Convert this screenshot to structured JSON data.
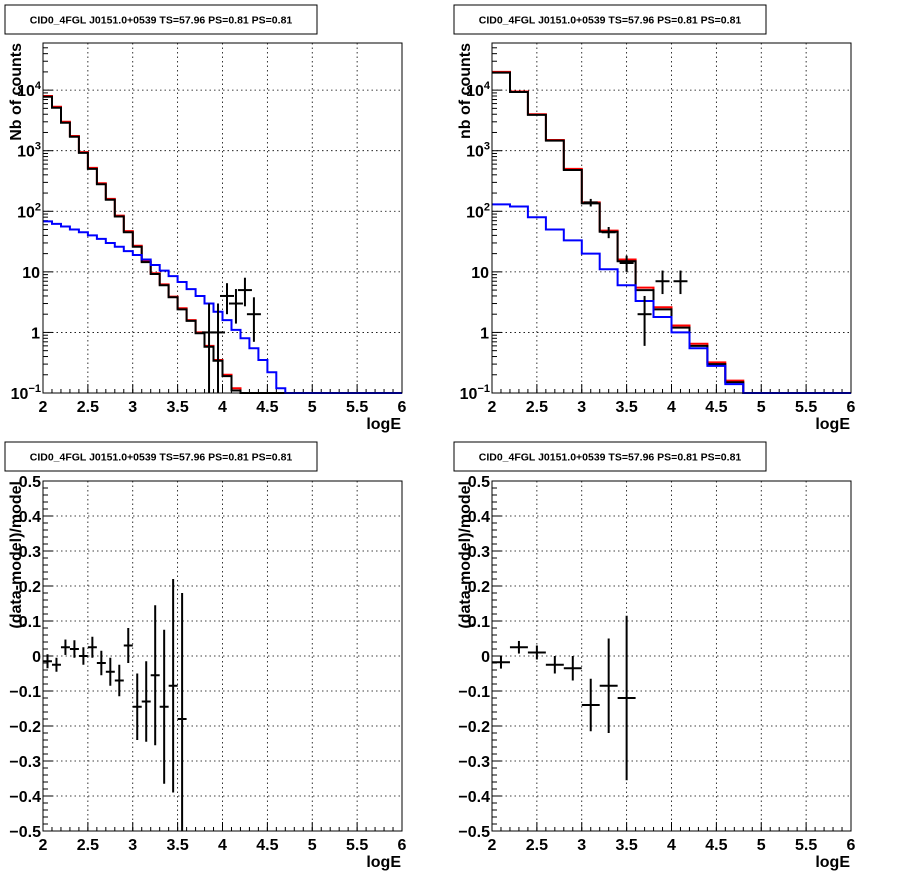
{
  "chart_data": [
    {
      "type": "line",
      "title": "CID0_4FGL J0151.0+0539 TS=57.96 PS=0.81 PS=0.81",
      "xlabel": "logE",
      "ylabel": "Nb of counts",
      "xlim": [
        2,
        6
      ],
      "ylim": [
        0.1,
        60000
      ],
      "yscale": "log",
      "grid": true,
      "xticks": [
        "2",
        "2.5",
        "3",
        "3.5",
        "4",
        "4.5",
        "5",
        "5.5",
        "6"
      ],
      "yticks": [
        {
          "value": 0.1,
          "base": "10",
          "exp": "−1"
        },
        {
          "value": 1,
          "label": "1"
        },
        {
          "value": 10,
          "label": "10"
        },
        {
          "value": 100,
          "base": "10",
          "exp": "2"
        },
        {
          "value": 1000,
          "base": "10",
          "exp": "3"
        },
        {
          "value": 10000,
          "base": "10",
          "exp": "4"
        }
      ],
      "bin_edges": [
        2.0,
        2.1,
        2.2,
        2.3,
        2.4,
        2.5,
        2.6,
        2.7,
        2.8,
        2.9,
        3.0,
        3.1,
        3.2,
        3.3,
        3.4,
        3.5,
        3.6,
        3.7,
        3.8,
        3.9,
        4.0,
        4.1,
        4.2,
        4.3,
        4.4,
        4.5,
        4.6,
        4.7,
        4.8,
        4.9,
        5.0,
        5.1,
        5.2,
        5.3,
        5.4,
        5.5,
        5.6,
        5.7,
        5.8,
        5.9,
        6.0
      ],
      "series": [
        {
          "color": "#ff0000",
          "values": [
            8000,
            5300,
            3000,
            1750,
            950,
            520,
            290,
            160,
            85,
            47,
            27,
            15,
            9.5,
            6.2,
            3.9,
            2.5,
            1.6,
            1.0,
            0.6,
            0.35,
            0.2,
            0.12,
            0.1,
            0.1,
            0.1,
            0.1,
            0.1,
            0.1,
            0.1,
            0.1,
            0.1,
            0.1,
            0.1,
            0.1,
            0.1,
            0.1,
            0.1,
            0.1,
            0.1,
            0.1
          ]
        },
        {
          "color": "#000000",
          "values": [
            7800,
            5100,
            2900,
            1700,
            920,
            500,
            280,
            155,
            82,
            45,
            26,
            14.5,
            9.2,
            6.0,
            3.8,
            2.4,
            1.55,
            0.97,
            0.58,
            0.34,
            0.19,
            0.11,
            0.1,
            0.1,
            0.1,
            0.1,
            0.1,
            0.1,
            0.1,
            0.1,
            0.1,
            0.1,
            0.1,
            0.1,
            0.1,
            0.1,
            0.1,
            0.1,
            0.1,
            0.1
          ]
        },
        {
          "color": "#0000ff",
          "values": [
            68,
            62,
            56,
            50,
            45,
            40,
            35,
            30,
            26,
            22,
            19,
            16,
            13,
            10.5,
            8.5,
            6.8,
            5.2,
            4.0,
            3.0,
            2.2,
            1.6,
            1.1,
            0.8,
            0.55,
            0.35,
            0.22,
            0.12,
            0.1,
            0.1,
            0.1,
            0.1,
            0.1,
            0.1,
            0.1,
            0.1,
            0.1,
            0.1,
            0.1,
            0.1,
            0.1
          ]
        }
      ],
      "data_points": [
        {
          "x": 3.85,
          "y": 1,
          "ylo": 0.1,
          "yhi": 3
        },
        {
          "x": 3.95,
          "y": 1,
          "ylo": 0.1,
          "yhi": 3
        },
        {
          "x": 4.05,
          "y": 4,
          "ylo": 2,
          "yhi": 6.5
        },
        {
          "x": 4.15,
          "y": 3,
          "ylo": 1.4,
          "yhi": 5.2
        },
        {
          "x": 4.25,
          "y": 5,
          "ylo": 2.7,
          "yhi": 8
        },
        {
          "x": 4.35,
          "y": 2,
          "ylo": 0.7,
          "yhi": 3.8
        }
      ]
    },
    {
      "type": "line",
      "title": "CID0_4FGL J0151.0+0539 TS=57.96 PS=0.81 PS=0.81",
      "xlabel": "logE",
      "ylabel": "nb of counts",
      "xlim": [
        2,
        6
      ],
      "ylim": [
        0.1,
        60000
      ],
      "yscale": "log",
      "grid": true,
      "xticks": [
        "2",
        "2.5",
        "3",
        "3.5",
        "4",
        "4.5",
        "5",
        "5.5",
        "6"
      ],
      "yticks": [
        {
          "value": 0.1,
          "base": "10",
          "exp": "−1"
        },
        {
          "value": 1,
          "label": "1"
        },
        {
          "value": 10,
          "label": "10"
        },
        {
          "value": 100,
          "base": "10",
          "exp": "2"
        },
        {
          "value": 1000,
          "base": "10",
          "exp": "3"
        },
        {
          "value": 10000,
          "base": "10",
          "exp": "4"
        }
      ],
      "bin_edges": [
        2.0,
        2.2,
        2.4,
        2.6,
        2.8,
        3.0,
        3.2,
        3.4,
        3.6,
        3.8,
        4.0,
        4.2,
        4.4,
        4.6,
        4.8,
        5.0,
        5.2,
        5.4,
        5.6,
        5.8,
        6.0
      ],
      "series": [
        {
          "color": "#ff0000",
          "values": [
            20000,
            9500,
            4000,
            1500,
            500,
            140,
            48,
            16,
            5.5,
            2.6,
            1.3,
            0.65,
            0.32,
            0.16,
            0.1,
            0.1,
            0.1,
            0.1,
            0.1,
            0.1
          ]
        },
        {
          "color": "#000000",
          "values": [
            19500,
            9300,
            3900,
            1470,
            480,
            135,
            46,
            15,
            5.0,
            2.4,
            1.2,
            0.6,
            0.3,
            0.15,
            0.1,
            0.1,
            0.1,
            0.1,
            0.1,
            0.1
          ]
        },
        {
          "color": "#0000ff",
          "values": [
            130,
            120,
            80,
            50,
            33,
            20,
            11,
            6.0,
            3.3,
            1.8,
            1.0,
            0.55,
            0.28,
            0.14,
            0.1,
            0.1,
            0.1,
            0.1,
            0.1,
            0.1
          ]
        }
      ],
      "data_points": [
        {
          "x": 3.1,
          "y": 140,
          "ylo": 120,
          "yhi": 160
        },
        {
          "x": 3.3,
          "y": 45,
          "ylo": 36,
          "yhi": 55
        },
        {
          "x": 3.5,
          "y": 14,
          "ylo": 10,
          "yhi": 18.5
        },
        {
          "x": 3.7,
          "y": 2,
          "ylo": 0.6,
          "yhi": 4
        },
        {
          "x": 3.9,
          "y": 7,
          "ylo": 4.3,
          "yhi": 10.5
        },
        {
          "x": 4.1,
          "y": 7,
          "ylo": 4.3,
          "yhi": 10.5
        }
      ]
    },
    {
      "type": "scatter",
      "title": "CID0_4FGL J0151.0+0539 TS=57.96 PS=0.81 PS=0.81",
      "xlabel": "logE",
      "ylabel": "(data-model)/model",
      "xlim": [
        2,
        6
      ],
      "ylim": [
        -0.5,
        0.5
      ],
      "grid": true,
      "xticks": [
        "2",
        "2.5",
        "3",
        "3.5",
        "4",
        "4.5",
        "5",
        "5.5",
        "6"
      ],
      "yticks": [
        "-0.5",
        "-0.4",
        "-0.3",
        "-0.2",
        "-0.1",
        "0",
        "0.1",
        "0.2",
        "0.3",
        "0.4",
        "0.5"
      ],
      "ytick_values": [
        -0.5,
        -0.4,
        -0.3,
        -0.2,
        -0.1,
        0,
        0.1,
        0.2,
        0.3,
        0.4,
        0.5
      ],
      "points": [
        {
          "x": 2.05,
          "y": -0.015,
          "xerr": 0.05,
          "yerr": 0.02
        },
        {
          "x": 2.15,
          "y": -0.025,
          "xerr": 0.05,
          "yerr": 0.02
        },
        {
          "x": 2.25,
          "y": 0.025,
          "xerr": 0.05,
          "yerr": 0.022
        },
        {
          "x": 2.35,
          "y": 0.02,
          "xerr": 0.05,
          "yerr": 0.025
        },
        {
          "x": 2.45,
          "y": 0.0,
          "xerr": 0.05,
          "yerr": 0.025
        },
        {
          "x": 2.55,
          "y": 0.025,
          "xerr": 0.05,
          "yerr": 0.03
        },
        {
          "x": 2.65,
          "y": -0.02,
          "xerr": 0.05,
          "yerr": 0.035
        },
        {
          "x": 2.75,
          "y": -0.045,
          "xerr": 0.05,
          "yerr": 0.04
        },
        {
          "x": 2.85,
          "y": -0.07,
          "xerr": 0.05,
          "yerr": 0.045
        },
        {
          "x": 2.95,
          "y": 0.03,
          "xerr": 0.05,
          "yerr": 0.05
        },
        {
          "x": 3.05,
          "y": -0.145,
          "xerr": 0.05,
          "yerr": 0.095
        },
        {
          "x": 3.15,
          "y": -0.13,
          "xerr": 0.05,
          "yerr": 0.115
        },
        {
          "x": 3.25,
          "y": -0.055,
          "xerr": 0.05,
          "yerr": 0.2
        },
        {
          "x": 3.35,
          "y": -0.145,
          "xerr": 0.05,
          "yerr": 0.22
        },
        {
          "x": 3.45,
          "y": -0.085,
          "xerr": 0.05,
          "yerr": 0.305
        },
        {
          "x": 3.55,
          "y": -0.18,
          "xerr": 0.05,
          "yerr": 0.36
        }
      ]
    },
    {
      "type": "scatter",
      "title": "CID0_4FGL J0151.0+0539 TS=57.96 PS=0.81 PS=0.81",
      "xlabel": "logE",
      "ylabel": "(data-model)/model",
      "xlim": [
        2,
        6
      ],
      "ylim": [
        -0.5,
        0.5
      ],
      "grid": true,
      "xticks": [
        "2",
        "2.5",
        "3",
        "3.5",
        "4",
        "4.5",
        "5",
        "5.5",
        "6"
      ],
      "yticks": [
        "-0.5",
        "-0.4",
        "-0.3",
        "-0.2",
        "-0.1",
        "0",
        "0.1",
        "0.2",
        "0.3",
        "0.4",
        "0.5"
      ],
      "ytick_values": [
        -0.5,
        -0.4,
        -0.3,
        -0.2,
        -0.1,
        0,
        0.1,
        0.2,
        0.3,
        0.4,
        0.5
      ],
      "points": [
        {
          "x": 2.1,
          "y": -0.018,
          "xerr": 0.1,
          "yerr": 0.018
        },
        {
          "x": 2.3,
          "y": 0.025,
          "xerr": 0.1,
          "yerr": 0.018
        },
        {
          "x": 2.5,
          "y": 0.01,
          "xerr": 0.1,
          "yerr": 0.02
        },
        {
          "x": 2.7,
          "y": -0.025,
          "xerr": 0.1,
          "yerr": 0.025
        },
        {
          "x": 2.9,
          "y": -0.035,
          "xerr": 0.1,
          "yerr": 0.035
        },
        {
          "x": 3.1,
          "y": -0.14,
          "xerr": 0.1,
          "yerr": 0.075
        },
        {
          "x": 3.3,
          "y": -0.085,
          "xerr": 0.1,
          "yerr": 0.135
        },
        {
          "x": 3.5,
          "y": -0.12,
          "xerr": 0.1,
          "yerr": 0.235
        }
      ]
    }
  ]
}
